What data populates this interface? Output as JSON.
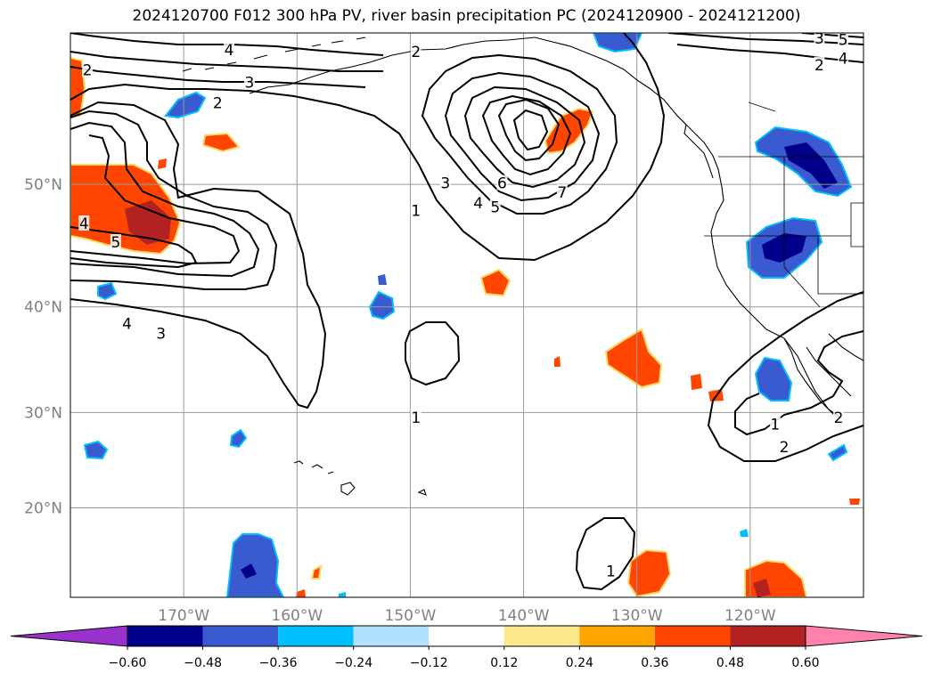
{
  "title": "2024120700 F012 300 hPa PV, river basin precipitation PC (2024120900 - 2024121200)",
  "map": {
    "lon_range": [
      -180,
      -110
    ],
    "lat_range": [
      10,
      60
    ],
    "lon_ticks": [
      {
        "value": -170,
        "label": "170°W"
      },
      {
        "value": -160,
        "label": "160°W"
      },
      {
        "value": -150,
        "label": "150°W"
      },
      {
        "value": -140,
        "label": "140°W"
      },
      {
        "value": -130,
        "label": "130°W"
      },
      {
        "value": -120,
        "label": "120°W"
      }
    ],
    "lat_ticks": [
      {
        "value": 20,
        "label": "20°N"
      },
      {
        "value": 30,
        "label": "30°N"
      },
      {
        "value": 40,
        "label": "40°N"
      },
      {
        "value": 50,
        "label": "50°N"
      }
    ],
    "grid": true,
    "tick_label_color": "#808080"
  },
  "colorbar": {
    "orientation": "horizontal",
    "extend": "both",
    "colors": [
      "#9932cc",
      "#00008b",
      "#3a5bd0",
      "#00bfff",
      "#b0e2ff",
      "#ffffff",
      "#fce98c",
      "#ffa500",
      "#ff4500",
      "#b22222",
      "#ff82ab"
    ],
    "tick_labels": [
      "−0.60",
      "−0.48",
      "−0.36",
      "−0.24",
      "−0.12",
      "0.12",
      "0.24",
      "0.36",
      "0.48",
      "0.60"
    ]
  },
  "pv_contour_labels": [
    {
      "text": "4",
      "lon": -178.8,
      "lat": 47.0
    },
    {
      "text": "5",
      "lon": -176.0,
      "lat": 45.5
    },
    {
      "text": "4",
      "lon": -175.0,
      "lat": 38.5
    },
    {
      "text": "3",
      "lon": -172.0,
      "lat": 37.6
    },
    {
      "text": "4",
      "lon": -166.0,
      "lat": 59.0
    },
    {
      "text": "3",
      "lon": -164.2,
      "lat": 57.0
    },
    {
      "text": "2",
      "lon": -167.0,
      "lat": 55.7
    },
    {
      "text": "2",
      "lon": -178.5,
      "lat": 57.8
    },
    {
      "text": "2",
      "lon": -149.5,
      "lat": 58.9
    },
    {
      "text": "1",
      "lon": -149.5,
      "lat": 48.0
    },
    {
      "text": "3",
      "lon": -146.9,
      "lat": 50.1
    },
    {
      "text": "4",
      "lon": -144.0,
      "lat": 48.6
    },
    {
      "text": "5",
      "lon": -142.5,
      "lat": 48.3
    },
    {
      "text": "6",
      "lon": -141.9,
      "lat": 50.1
    },
    {
      "text": "7",
      "lon": -136.6,
      "lat": 49.4
    },
    {
      "text": "1",
      "lon": -149.5,
      "lat": 29.5
    },
    {
      "text": "1",
      "lon": -132.3,
      "lat": 13.0
    },
    {
      "text": "1",
      "lon": -117.8,
      "lat": 28.8
    },
    {
      "text": "2",
      "lon": -117.0,
      "lat": 26.5
    },
    {
      "text": "2",
      "lon": -112.2,
      "lat": 29.5
    },
    {
      "text": "3",
      "lon": -113.9,
      "lat": 59.7
    },
    {
      "text": "2",
      "lon": -113.9,
      "lat": 58.1
    },
    {
      "text": "5",
      "lon": -111.8,
      "lat": 59.6
    },
    {
      "text": "4",
      "lon": -111.8,
      "lat": 58.5
    }
  ]
}
